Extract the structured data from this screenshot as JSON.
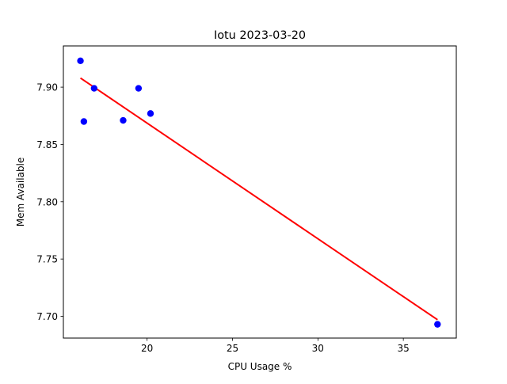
{
  "chart_data": {
    "type": "scatter",
    "title": "Iotu 2023-03-20",
    "xlabel": "CPU Usage %",
    "ylabel": "Mem Available",
    "xlim": [
      15.1,
      38.1
    ],
    "ylim": [
      7.681,
      7.936
    ],
    "x_ticks": [
      {
        "value": 20,
        "label": "20"
      },
      {
        "value": 25,
        "label": "25"
      },
      {
        "value": 30,
        "label": "30"
      },
      {
        "value": 35,
        "label": "35"
      }
    ],
    "y_ticks": [
      {
        "value": 7.7,
        "label": "7.70"
      },
      {
        "value": 7.75,
        "label": "7.75"
      },
      {
        "value": 7.8,
        "label": "7.80"
      },
      {
        "value": 7.85,
        "label": "7.85"
      },
      {
        "value": 7.9,
        "label": "7.90"
      }
    ],
    "grid": false,
    "series": [
      {
        "kind": "scatter",
        "color": "#0000ff",
        "points": [
          {
            "x": 16.1,
            "y": 7.923
          },
          {
            "x": 16.3,
            "y": 7.87
          },
          {
            "x": 16.9,
            "y": 7.899
          },
          {
            "x": 18.6,
            "y": 7.871
          },
          {
            "x": 19.5,
            "y": 7.899
          },
          {
            "x": 20.2,
            "y": 7.877
          },
          {
            "x": 37.0,
            "y": 7.693
          }
        ]
      },
      {
        "kind": "line",
        "color": "#ff0000",
        "points": [
          {
            "x": 16.1,
            "y": 7.908
          },
          {
            "x": 37.0,
            "y": 7.697
          }
        ]
      }
    ]
  }
}
